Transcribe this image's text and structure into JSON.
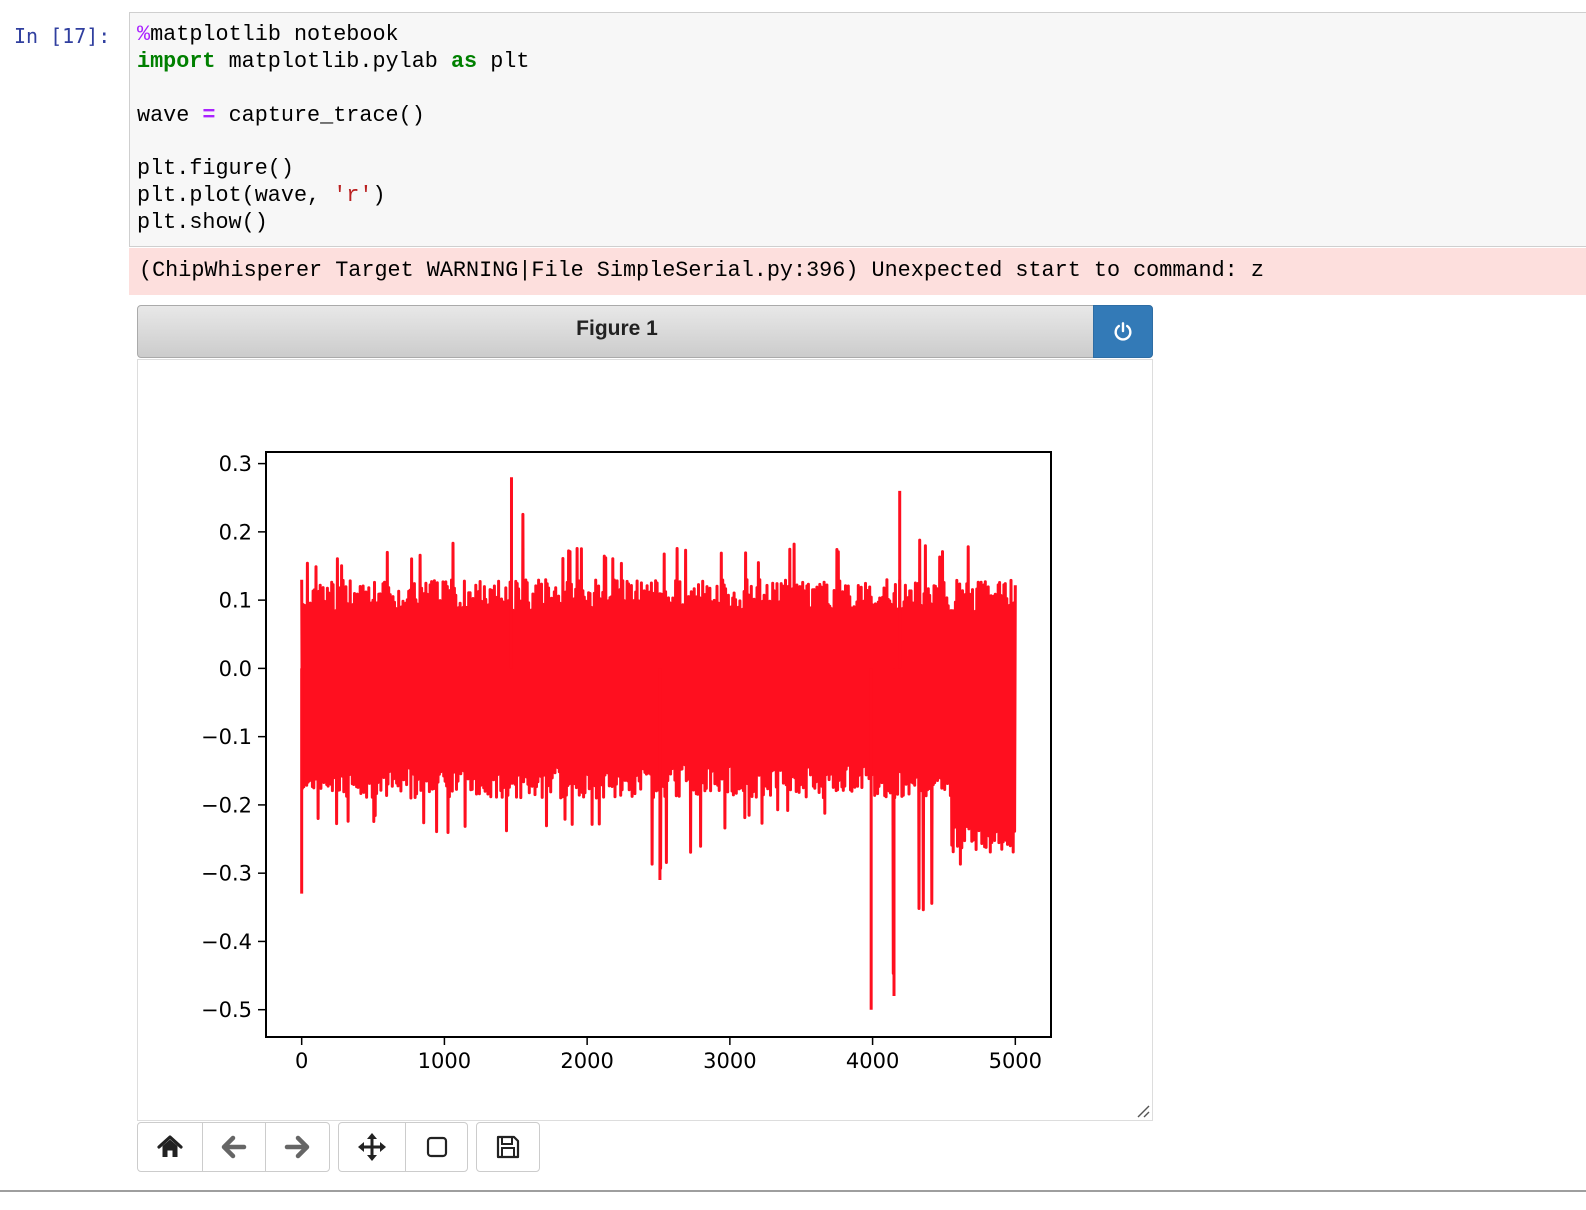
{
  "prompt": "In [17]:",
  "code_lines": [
    [
      {
        "t": "%",
        "c": "magic"
      },
      {
        "t": "matplotlib notebook",
        "c": ""
      }
    ],
    [
      {
        "t": "import",
        "c": "kw"
      },
      {
        "t": " matplotlib.pylab ",
        "c": ""
      },
      {
        "t": "as",
        "c": "kw"
      },
      {
        "t": " plt",
        "c": ""
      }
    ],
    [],
    [
      {
        "t": "wave ",
        "c": ""
      },
      {
        "t": "=",
        "c": "op"
      },
      {
        "t": " capture_trace()",
        "c": ""
      }
    ],
    [],
    [
      {
        "t": "plt.figure()",
        "c": ""
      }
    ],
    [
      {
        "t": "plt.plot(wave, ",
        "c": ""
      },
      {
        "t": "'r'",
        "c": "str"
      },
      {
        "t": ")",
        "c": ""
      }
    ],
    [
      {
        "t": "plt.show()",
        "c": ""
      }
    ]
  ],
  "stderr": "(ChipWhisperer Target WARNING|File SimpleSerial.py:396) Unexpected start to command: z",
  "figure": {
    "title": "Figure 1",
    "power_icon": "power-icon"
  },
  "toolbar": {
    "buttons": [
      "home-icon",
      "back-arrow-icon",
      "forward-arrow-icon",
      "move-icon",
      "zoom-rect-icon",
      "save-icon"
    ]
  },
  "chart_data": {
    "type": "line",
    "title": "",
    "xlabel": "",
    "ylabel": "",
    "xlim": [
      -250,
      5250
    ],
    "ylim": [
      -0.54,
      0.317
    ],
    "xticks": [
      0,
      1000,
      2000,
      3000,
      4000,
      5000
    ],
    "yticks": [
      0.3,
      0.2,
      0.1,
      0.0,
      -0.1,
      -0.2,
      -0.3,
      -0.4,
      -0.5
    ],
    "ytick_labels": [
      "0.3",
      "0.2",
      "0.1",
      "0.0",
      "−0.1",
      "−0.2",
      "−0.3",
      "−0.4",
      "−0.5"
    ],
    "grid": false,
    "series": [
      {
        "color": "#ff0f1f",
        "x_range": [
          0,
          5000
        ],
        "upper_envelope": [
          [
            0,
            0.07
          ],
          [
            30,
            0.17
          ],
          [
            120,
            0.15
          ],
          [
            200,
            0.18
          ],
          [
            340,
            0.16
          ],
          [
            520,
            0.17
          ],
          [
            700,
            0.17
          ],
          [
            1030,
            0.19
          ],
          [
            1300,
            0.16
          ],
          [
            1470,
            0.28
          ],
          [
            1700,
            0.18
          ],
          [
            2000,
            0.18
          ],
          [
            2300,
            0.17
          ],
          [
            2600,
            0.18
          ],
          [
            3000,
            0.17
          ],
          [
            3400,
            0.17
          ],
          [
            3550,
            0.24
          ],
          [
            3800,
            0.17
          ],
          [
            4000,
            0.18
          ],
          [
            4050,
            0.22
          ],
          [
            4190,
            0.26
          ],
          [
            4400,
            0.17
          ],
          [
            4650,
            0.19
          ],
          [
            4800,
            0.13
          ],
          [
            5000,
            0.12
          ]
        ],
        "lower_envelope": [
          [
            0,
            -0.33
          ],
          [
            40,
            -0.2
          ],
          [
            150,
            -0.24
          ],
          [
            400,
            -0.22
          ],
          [
            700,
            -0.24
          ],
          [
            1000,
            -0.24
          ],
          [
            1480,
            -0.25
          ],
          [
            2000,
            -0.23
          ],
          [
            2510,
            -0.31
          ],
          [
            3000,
            -0.24
          ],
          [
            3500,
            -0.22
          ],
          [
            3900,
            -0.24
          ],
          [
            3990,
            -0.5
          ],
          [
            4100,
            -0.27
          ],
          [
            4150,
            -0.48
          ],
          [
            4300,
            -0.37
          ],
          [
            4430,
            -0.36
          ],
          [
            4600,
            -0.29
          ],
          [
            5000,
            -0.3
          ]
        ],
        "typical_low": -0.19,
        "typical_high": 0.13
      }
    ]
  }
}
